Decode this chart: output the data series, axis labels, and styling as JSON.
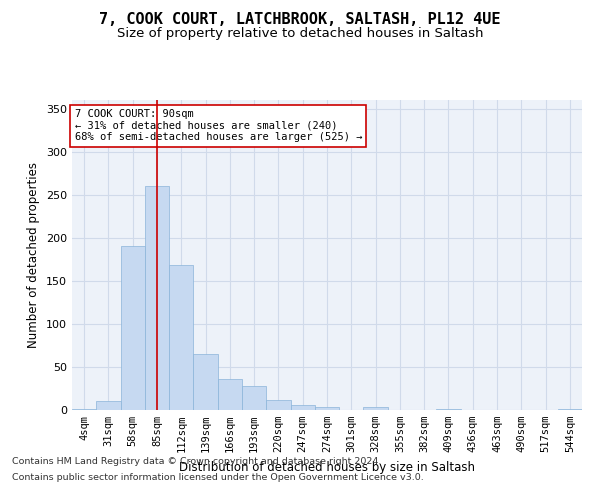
{
  "title_line1": "7, COOK COURT, LATCHBROOK, SALTASH, PL12 4UE",
  "title_line2": "Size of property relative to detached houses in Saltash",
  "xlabel": "Distribution of detached houses by size in Saltash",
  "ylabel": "Number of detached properties",
  "bar_color": "#c6d9f1",
  "bar_edge_color": "#8ab4d9",
  "grid_color": "#d0daea",
  "background_color": "#edf2f9",
  "vline_color": "#cc0000",
  "vline_x": 3,
  "annotation_text": "7 COOK COURT: 90sqm\n← 31% of detached houses are smaller (240)\n68% of semi-detached houses are larger (525) →",
  "annotation_box_color": "#ffffff",
  "annotation_box_edge": "#cc0000",
  "categories": [
    "4sqm",
    "31sqm",
    "58sqm",
    "85sqm",
    "112sqm",
    "139sqm",
    "166sqm",
    "193sqm",
    "220sqm",
    "247sqm",
    "274sqm",
    "301sqm",
    "328sqm",
    "355sqm",
    "382sqm",
    "409sqm",
    "436sqm",
    "463sqm",
    "490sqm",
    "517sqm",
    "544sqm"
  ],
  "values": [
    1,
    10,
    190,
    260,
    168,
    65,
    36,
    28,
    12,
    6,
    4,
    0,
    3,
    0,
    0,
    1,
    0,
    0,
    0,
    0,
    1
  ],
  "ylim": [
    0,
    360
  ],
  "yticks": [
    0,
    50,
    100,
    150,
    200,
    250,
    300,
    350
  ],
  "footnote_line1": "Contains HM Land Registry data © Crown copyright and database right 2024.",
  "footnote_line2": "Contains public sector information licensed under the Open Government Licence v3.0."
}
